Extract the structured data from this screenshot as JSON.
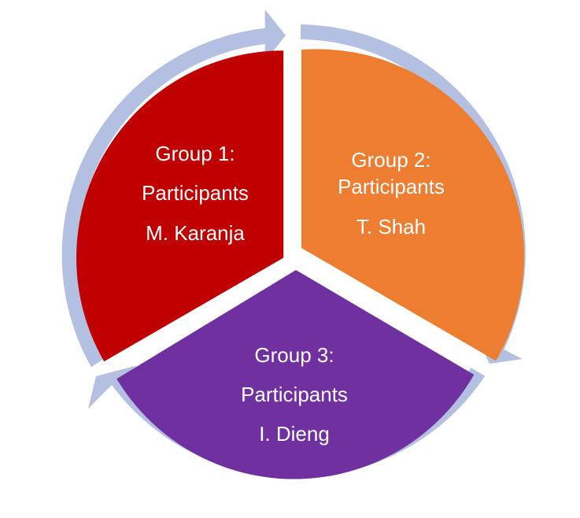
{
  "diagram": {
    "colors": {
      "ring": "#b4c0e1",
      "group1": "#c00000",
      "group2": "#ed7d31",
      "group3": "#7030a0",
      "text": "#ffffff"
    },
    "segments": [
      {
        "title": "Group 1:",
        "subtitle": "Participants",
        "name": "M. Karanja"
      },
      {
        "title": "Group 2:",
        "subtitle": "Participants",
        "name": "T. Shah"
      },
      {
        "title": "Group 3:",
        "subtitle": "Participants",
        "name": "I. Dieng"
      }
    ]
  }
}
